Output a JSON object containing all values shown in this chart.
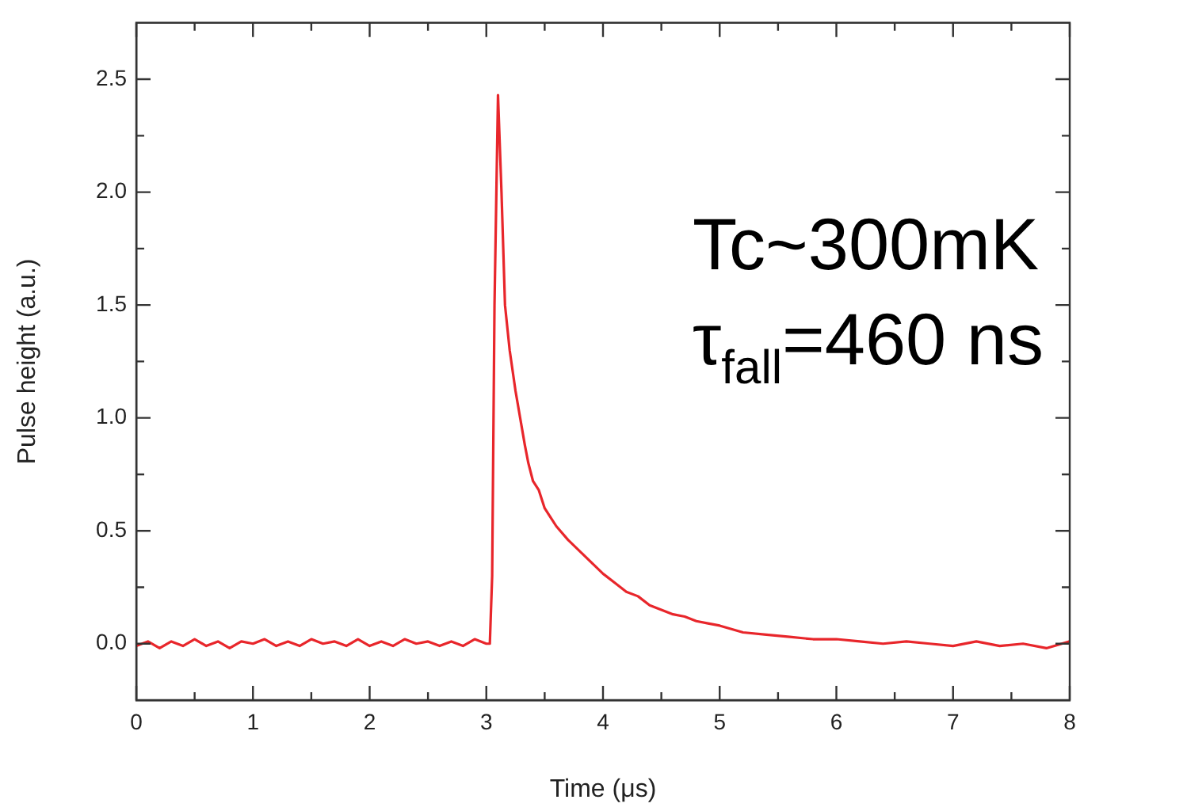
{
  "chart_data": {
    "type": "line",
    "xlabel": "Time (μs)",
    "ylabel": "Pulse height (a.u.)",
    "annotations": [
      "Tc~300mK",
      "τ$_{fall}$=460 ns"
    ],
    "xlim": [
      0,
      8
    ],
    "ylim": [
      -0.25,
      2.75
    ],
    "xticks": [
      0,
      {
        "value": 0.5,
        "label": null
      },
      1,
      {
        "value": 1.5,
        "label": null
      },
      2,
      {
        "value": 2.5,
        "label": null
      },
      3,
      {
        "value": 3.5,
        "label": null
      },
      4,
      {
        "value": 4.5,
        "label": null
      },
      5,
      {
        "value": 5.5,
        "label": null
      },
      6,
      {
        "value": 6.5,
        "label": null
      },
      7,
      {
        "value": 7.5,
        "label": null
      },
      8
    ],
    "yticks": [
      {
        "value": 0,
        "label": "0.0"
      },
      {
        "value": 0.25,
        "label": null
      },
      {
        "value": 0.5,
        "label": "0.5"
      },
      {
        "value": 0.75,
        "label": null
      },
      {
        "value": 1,
        "label": "1.0"
      },
      {
        "value": 1.25,
        "label": null
      },
      {
        "value": 1.5,
        "label": "1.5"
      },
      {
        "value": 1.75,
        "label": null
      },
      {
        "value": 2,
        "label": "2.0"
      },
      {
        "value": 2.25,
        "label": null
      },
      {
        "value": 2.5,
        "label": "2.5"
      }
    ],
    "marker": "none",
    "line_style": "solid",
    "legend": false,
    "series": [
      {
        "color": "#e8262b",
        "x": [
          0,
          0.1,
          0.2,
          0.3,
          0.4,
          0.5,
          0.6,
          0.7,
          0.8,
          0.9,
          1.0,
          1.1,
          1.2,
          1.3,
          1.4,
          1.5,
          1.6,
          1.7,
          1.8,
          1.9,
          2.0,
          2.1,
          2.2,
          2.3,
          2.4,
          2.5,
          2.6,
          2.7,
          2.8,
          2.9,
          3.0,
          3.03,
          3.05,
          3.07,
          3.1,
          3.13,
          3.16,
          3.2,
          3.25,
          3.29,
          3.33,
          3.36,
          3.4,
          3.45,
          3.5,
          3.55,
          3.6,
          3.7,
          3.8,
          3.9,
          4.0,
          4.1,
          4.2,
          4.3,
          4.4,
          4.5,
          4.6,
          4.7,
          4.8,
          4.9,
          5.0,
          5.2,
          5.4,
          5.6,
          5.8,
          6.0,
          6.2,
          6.4,
          6.6,
          6.8,
          7.0,
          7.2,
          7.4,
          7.6,
          7.8,
          8.0
        ],
        "values": [
          -0.01,
          0.01,
          -0.02,
          0.01,
          -0.01,
          0.02,
          -0.01,
          0.01,
          -0.02,
          0.01,
          0,
          0.02,
          -0.01,
          0.01,
          -0.01,
          0.02,
          0,
          0.01,
          -0.01,
          0.02,
          -0.01,
          0.01,
          -0.01,
          0.02,
          0,
          0.01,
          -0.01,
          0.01,
          -0.01,
          0.02,
          0,
          0,
          0.3,
          1.5,
          2.43,
          2.0,
          1.5,
          1.3,
          1.12,
          1.0,
          0.88,
          0.8,
          0.72,
          0.68,
          0.6,
          0.56,
          0.52,
          0.46,
          0.41,
          0.36,
          0.31,
          0.27,
          0.23,
          0.21,
          0.17,
          0.15,
          0.13,
          0.12,
          0.1,
          0.09,
          0.08,
          0.05,
          0.04,
          0.03,
          0.02,
          0.02,
          0.01,
          0,
          0.01,
          0,
          -0.01,
          0.01,
          -0.01,
          0,
          -0.02,
          0.01
        ]
      }
    ]
  }
}
